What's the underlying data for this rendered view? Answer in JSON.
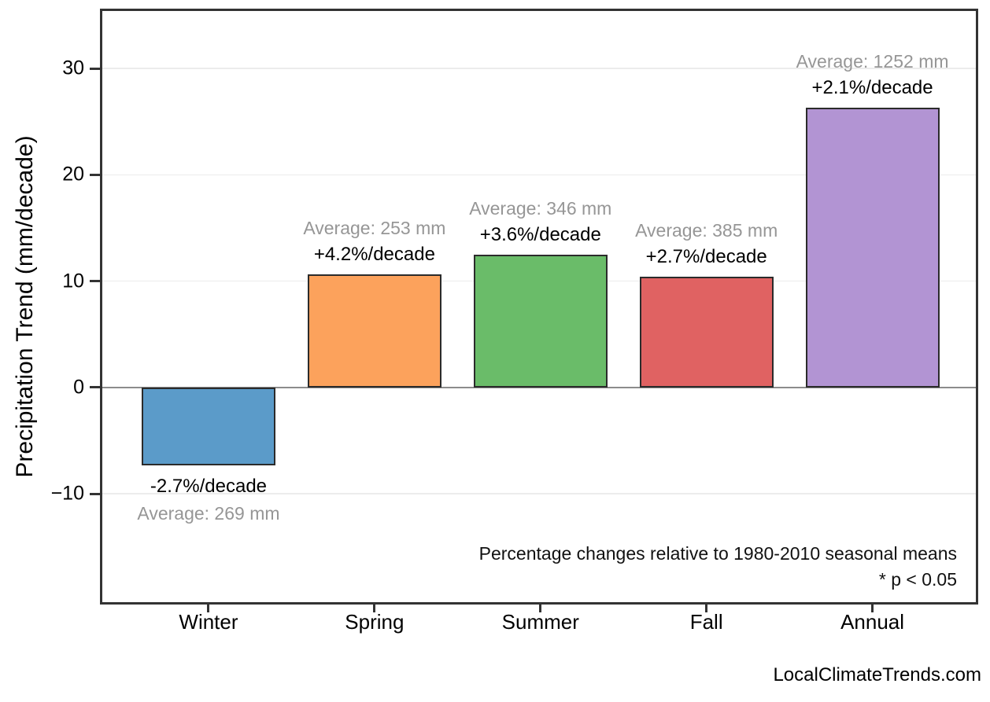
{
  "watermark": "LocalClimateTrends.com",
  "chart_data": {
    "type": "bar",
    "title": "",
    "xlabel": "",
    "ylabel": "Precipitation Trend (mm/decade)",
    "categories": [
      "Winter",
      "Spring",
      "Summer",
      "Fall",
      "Annual"
    ],
    "values": [
      -7.3,
      10.6,
      12.5,
      10.4,
      26.3
    ],
    "averages_mm": [
      269,
      253,
      346,
      385,
      1252
    ],
    "percent_per_decade": [
      -2.7,
      4.2,
      3.6,
      2.7,
      2.1
    ],
    "bar_labels": [
      {
        "percent": "-2.7%/decade",
        "average": "Average: 269 mm"
      },
      {
        "percent": "+4.2%/decade",
        "average": "Average: 253 mm"
      },
      {
        "percent": "+3.6%/decade",
        "average": "Average: 346 mm"
      },
      {
        "percent": "+2.7%/decade",
        "average": "Average: 385 mm"
      },
      {
        "percent": "+2.1%/decade",
        "average": "Average: 1252 mm"
      }
    ],
    "yticks": [
      -10,
      0,
      10,
      20,
      30
    ],
    "ylim": [
      -20.2,
      35.4
    ],
    "grid": "horizontal-light",
    "zero_line": true,
    "legend": "none",
    "annotations": [
      "Percentage changes relative to 1980-2010 seasonal means",
      "* p < 0.05"
    ],
    "colors": {
      "bars": [
        "#5b9bc9",
        "#fca25c",
        "#6abc69",
        "#e06262",
        "#b294d3"
      ],
      "bar_edge": "#2b2b2b",
      "gridline": "#ececec",
      "zero_line": "#8c8c8c",
      "plot_border": "#333333",
      "average_text": "#969696",
      "percent_text": "#000000"
    }
  }
}
